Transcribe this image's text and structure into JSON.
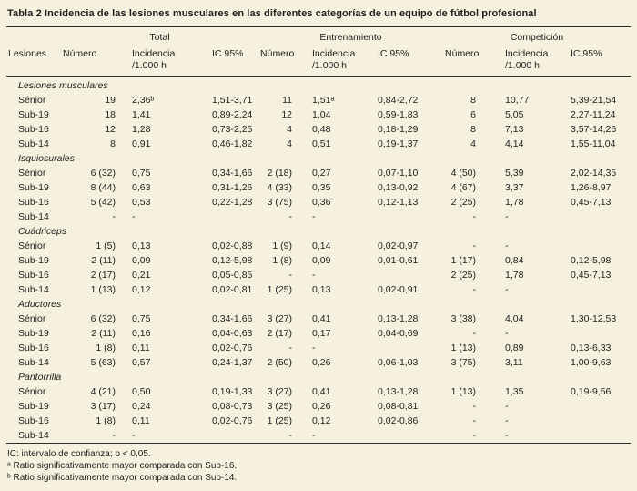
{
  "title": "Tabla 2 Incidencia de las lesiones musculares en las diferentes categorías de un equipo de fútbol profesional",
  "header": {
    "groups": [
      "Total",
      "Entrenamiento",
      "Competición"
    ],
    "lesiones": "Lesiones",
    "numero": "Número",
    "incidencia_line1": "Incidencia",
    "incidencia_line2": "/1.000 h",
    "ic": "IC 95%"
  },
  "table": {
    "sections": [
      {
        "name": "Lesiones musculares",
        "rows": [
          [
            "Sénior",
            "19",
            "2,36ᵇ",
            "1,51-3,71",
            "11",
            "1,51ᵃ",
            "0,84-2,72",
            "8",
            "10,77",
            "5,39-21,54"
          ],
          [
            "Sub-19",
            "18",
            "1,41",
            "0,89-2,24",
            "12",
            "1,04",
            "0,59-1,83",
            "6",
            "5,05",
            "2,27-11,24"
          ],
          [
            "Sub-16",
            "12",
            "1,28",
            "0,73-2,25",
            "4",
            "0,48",
            "0,18-1,29",
            "8",
            "7,13",
            "3,57-14,26"
          ],
          [
            "Sub-14",
            "8",
            "0,91",
            "0,46-1,82",
            "4",
            "0,51",
            "0,19-1,37",
            "4",
            "4,14",
            "1,55-11,04"
          ]
        ]
      },
      {
        "name": "Isquiosurales",
        "rows": [
          [
            "Sénior",
            "6 (32)",
            "0,75",
            "0,34-1,66",
            "2 (18)",
            "0,27",
            "0,07-1,10",
            "4 (50)",
            "5,39",
            "2,02-14,35"
          ],
          [
            "Sub-19",
            "8 (44)",
            "0,63",
            "0,31-1,26",
            "4 (33)",
            "0,35",
            "0,13-0,92",
            "4 (67)",
            "3,37",
            "1,26-8,97"
          ],
          [
            "Sub-16",
            "5 (42)",
            "0,53",
            "0,22-1,28",
            "3 (75)",
            "0,36",
            "0,12-1,13",
            "2 (25)",
            "1,78",
            "0,45-7,13"
          ],
          [
            "Sub-14",
            "-",
            "-",
            "",
            "-",
            "-",
            "",
            "-",
            "-",
            ""
          ]
        ]
      },
      {
        "name": "Cuádriceps",
        "rows": [
          [
            "Sénior",
            "1 (5)",
            "0,13",
            "0,02-0,88",
            "1 (9)",
            "0,14",
            "0,02-0,97",
            "-",
            "-",
            ""
          ],
          [
            "Sub-19",
            "2 (11)",
            "0,09",
            "0,12-5,98",
            "1 (8)",
            "0,09",
            "0,01-0,61",
            "1 (17)",
            "0,84",
            "0,12-5,98"
          ],
          [
            "Sub-16",
            "2 (17)",
            "0,21",
            "0,05-0,85",
            "-",
            "-",
            "",
            "2 (25)",
            "1,78",
            "0,45-7,13"
          ],
          [
            "Sub-14",
            "1 (13)",
            "0,12",
            "0,02-0,81",
            "1 (25)",
            "0,13",
            "0,02-0,91",
            "-",
            "-",
            ""
          ]
        ]
      },
      {
        "name": "Aductores",
        "rows": [
          [
            "Sénior",
            "6 (32)",
            "0,75",
            "0,34-1,66",
            "3 (27)",
            "0,41",
            "0,13-1,28",
            "3 (38)",
            "4,04",
            "1,30-12,53"
          ],
          [
            "Sub-19",
            "2 (11)",
            "0,16",
            "0,04-0,63",
            "2 (17)",
            "0,17",
            "0,04-0,69",
            "-",
            "-",
            ""
          ],
          [
            "Sub-16",
            "1 (8)",
            "0,11",
            "0,02-0,76",
            "-",
            "-",
            "",
            "1 (13)",
            "0,89",
            "0,13-6,33"
          ],
          [
            "Sub-14",
            "5 (63)",
            "0,57",
            "0,24-1,37",
            "2 (50)",
            "0,26",
            "0,06-1,03",
            "3 (75)",
            "3,11",
            "1,00-9,63"
          ]
        ]
      },
      {
        "name": "Pantorrilla",
        "rows": [
          [
            "Sénior",
            "4 (21)",
            "0,50",
            "0,19-1,33",
            "3 (27)",
            "0,41",
            "0,13-1,28",
            "1 (13)",
            "1,35",
            "0,19-9,56"
          ],
          [
            "Sub-19",
            "3 (17)",
            "0,24",
            "0,08-0,73",
            "3 (25)",
            "0,26",
            "0,08-0,81",
            "-",
            "-",
            ""
          ],
          [
            "Sub-16",
            "1 (8)",
            "0,11",
            "0,02-0,76",
            "1 (25)",
            "0,12",
            "0,02-0,86",
            "-",
            "-",
            ""
          ],
          [
            "Sub-14",
            "-",
            "-",
            "",
            "-",
            "-",
            "",
            "-",
            "-",
            ""
          ]
        ]
      }
    ]
  },
  "footnotes": [
    "IC: intervalo de confianza; p < 0,05.",
    "ᵃ Ratio significativamente mayor comparada con Sub-16.",
    "ᵇ Ratio significativamente mayor comparada con Sub-14."
  ],
  "colors": {
    "background": "#f6f1df",
    "text": "#1e1e1e",
    "rule": "#2e2e2e"
  }
}
